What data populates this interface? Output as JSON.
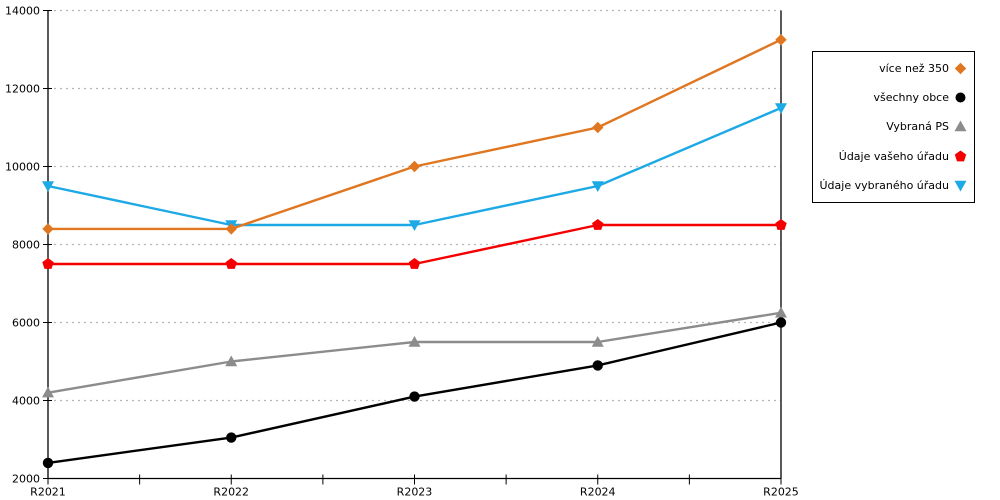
{
  "chart_data": {
    "type": "line",
    "title": "",
    "xlabel": "",
    "ylabel": "",
    "categories": [
      "R2021",
      "R2022",
      "R2023",
      "R2024",
      "R2025"
    ],
    "series": [
      {
        "name": "více než 350",
        "color": "#E07620",
        "marker": "diamond",
        "values": [
          8400,
          8400,
          10000,
          11000,
          13250
        ]
      },
      {
        "name": "všechny obce",
        "color": "#000000",
        "marker": "circle",
        "values": [
          2400,
          3050,
          4100,
          4900,
          6000
        ]
      },
      {
        "name": "Vybraná PS",
        "color": "#8C8C8C",
        "marker": "triangle-up",
        "values": [
          4200,
          5000,
          5500,
          5500,
          6250
        ]
      },
      {
        "name": "Údaje vašeho úřadu",
        "color": "#F40000",
        "marker": "pentagon",
        "values": [
          7500,
          7500,
          7500,
          8500,
          8500
        ]
      },
      {
        "name": "Údaje vybraného úřadu",
        "color": "#1CA9E5",
        "marker": "triangle-down",
        "values": [
          9500,
          8500,
          8500,
          9500,
          11500
        ]
      }
    ],
    "ylim": [
      2000,
      14000
    ],
    "y_tick_step": 2000,
    "y_tick_labels": [
      "2000",
      "4000",
      "6000",
      "8000",
      "10000",
      "12000",
      "14000"
    ],
    "grid": "horizontal-dashed",
    "grid_color": "#B5B5B5",
    "axis_color": "#000000",
    "legend_position": "top-right"
  }
}
